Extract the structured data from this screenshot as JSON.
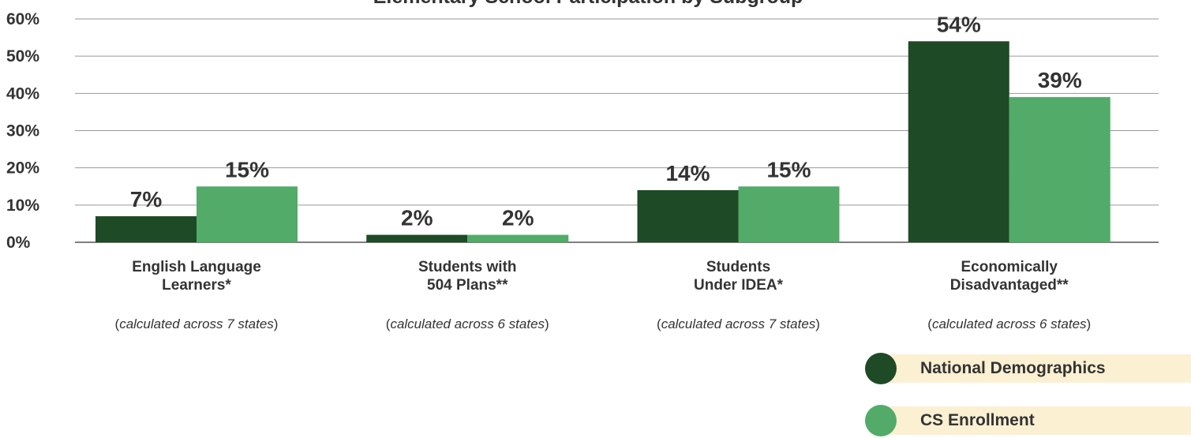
{
  "chart_data": {
    "type": "bar",
    "title": "Elementary School Participation by Subgroup",
    "categories": [
      {
        "lines": [
          "English Language",
          "Learners*"
        ],
        "note": "calculated across 7 states"
      },
      {
        "lines": [
          "Students with",
          "504 Plans**"
        ],
        "note": "calculated across 6 states"
      },
      {
        "lines": [
          "Students",
          "Under IDEA*"
        ],
        "note": "calculated across 7 states"
      },
      {
        "lines": [
          "Economically",
          "Disadvantaged**"
        ],
        "note": "calculated across 6 states"
      }
    ],
    "series": [
      {
        "name": "National Demographics",
        "color": "#1e4a26",
        "values": [
          7,
          2,
          14,
          54
        ]
      },
      {
        "name": "CS Enrollment",
        "color": "#52ab69",
        "values": [
          15,
          2,
          15,
          39
        ]
      }
    ],
    "yticks": [
      "0%",
      "10%",
      "20%",
      "30%",
      "40%",
      "50%",
      "60%"
    ],
    "ylim": [
      0,
      60
    ],
    "value_suffix": "%",
    "grid": true,
    "legend_position": "bottom-right"
  }
}
